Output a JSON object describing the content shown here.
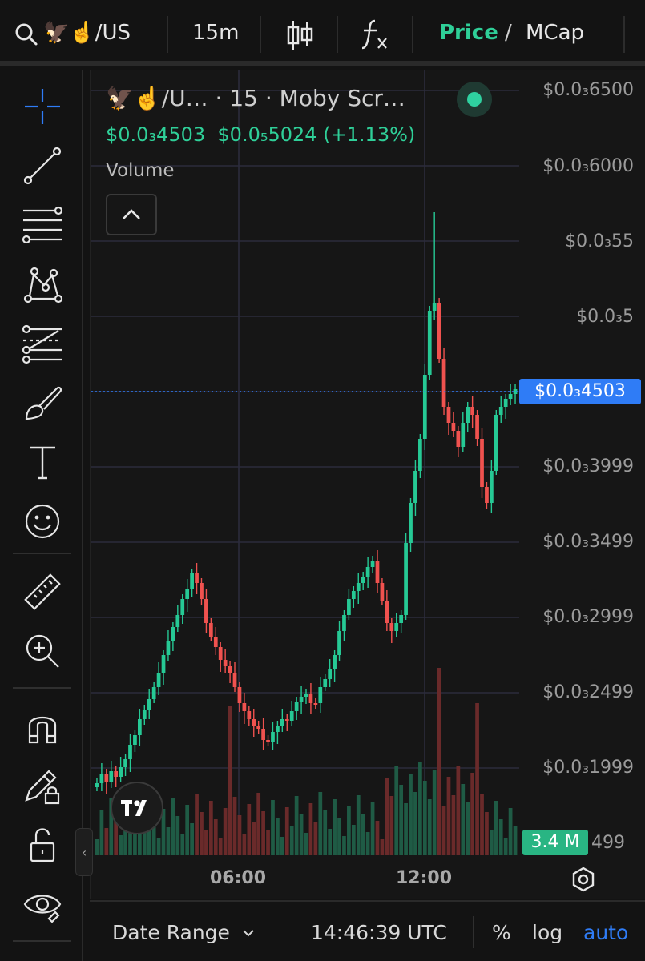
{
  "toolbar": {
    "symbol": "🦅☝️/US",
    "interval": "15m",
    "price_label": "Price",
    "slash": "/",
    "mcap_label": "MCap"
  },
  "legend": {
    "title": "🦅☝️/U… · 15 · Moby Scr…",
    "price": "$0.0₃4503",
    "change_abs": "$0.0₅5024",
    "change_pct": "(+1.13%)",
    "volume_label": "Volume"
  },
  "price_axis": {
    "labels": [
      "$0.0₃6500",
      "$0.0₃6000",
      "$0.0₃55",
      "$0.0₃5",
      "$0.0₃3999",
      "$0.0₃3499",
      "$0.0₃2999",
      "$0.0₃2499",
      "$0.0₃1999"
    ],
    "current": "$0.0₃4503",
    "volume_current": "3.4 M",
    "volume_axis": "499"
  },
  "time_axis": {
    "labels": [
      "06:00",
      "12:00"
    ]
  },
  "bottom": {
    "date_range": "Date Range",
    "clock": "14:46:39 UTC",
    "percent": "%",
    "log": "log",
    "auto": "auto"
  },
  "colors": {
    "up": "#26c995",
    "down": "#f0524f",
    "accent": "#2f7cf6",
    "price_active": "#2fcf98"
  },
  "tools": [
    "crosshair-icon",
    "trendline-icon",
    "fib-retracement-icon",
    "pattern-icon",
    "projection-icon",
    "brush-icon",
    "text-icon",
    "emoji-icon",
    "ruler-icon",
    "zoom-in-icon",
    "magnet-icon",
    "lock-drawing-icon",
    "unlock-icon",
    "eye-icon"
  ]
}
